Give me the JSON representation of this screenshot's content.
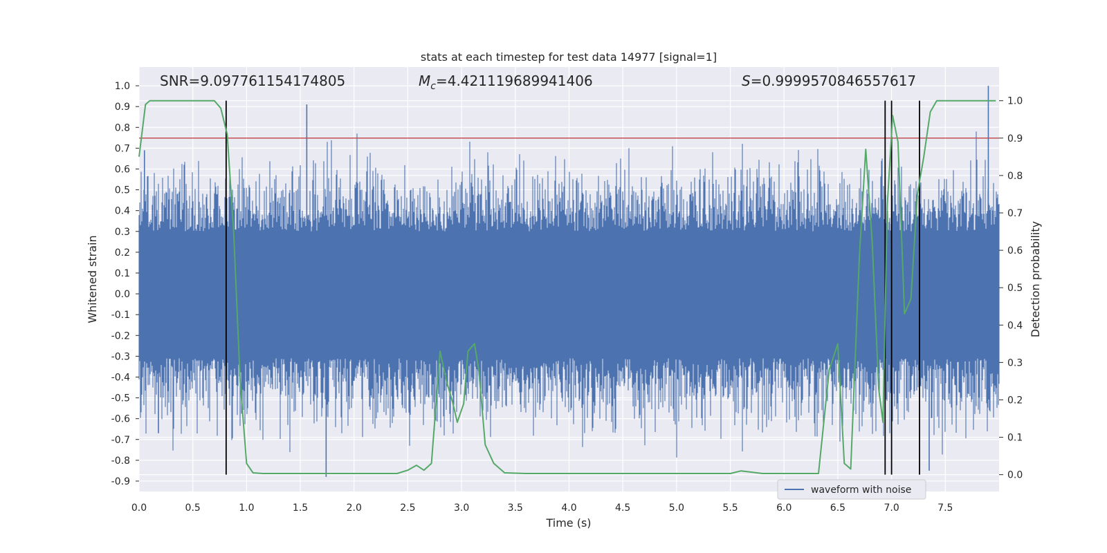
{
  "chart_data": {
    "type": "line",
    "title": "stats at each timestep for test data 14977 [signal=1]",
    "xlabel": "Time (s)",
    "ylabel": "Whitened strain",
    "y2label": "Detection probability",
    "xlim": [
      0.0,
      8.0
    ],
    "ylim": [
      -0.95,
      1.09
    ],
    "y2lim": [
      -0.045,
      1.09
    ],
    "x_ticks": [
      "0.0",
      "0.5",
      "1.0",
      "1.5",
      "2.0",
      "2.5",
      "3.0",
      "3.5",
      "4.0",
      "4.5",
      "5.0",
      "5.5",
      "6.0",
      "6.5",
      "7.0",
      "7.5"
    ],
    "y_ticks": [
      "1.0",
      "0.9",
      "0.8",
      "0.7",
      "0.6",
      "0.5",
      "0.4",
      "0.3",
      "0.2",
      "0.1",
      "0.0",
      "-0.1",
      "-0.2",
      "-0.3",
      "-0.4",
      "-0.5",
      "-0.6",
      "-0.7",
      "-0.8",
      "-0.9"
    ],
    "y2_ticks": [
      "1.0",
      "0.9",
      "0.8",
      "0.7",
      "0.6",
      "0.5",
      "0.4",
      "0.3",
      "0.2",
      "0.1",
      "0.0"
    ],
    "grid": true,
    "legend_position": "lower-right",
    "annotations": {
      "snr": "SNR=9.097761154174805",
      "mc_symbol": "M",
      "mc_sub": "c",
      "mc_value": "=4.421119689941406",
      "s_symbol": "S",
      "s_value": "=0.9999570846557617"
    },
    "series": [
      {
        "name": "waveform with noise",
        "kind": "noise-band",
        "axis": "left",
        "color": "#4c72b0",
        "core_range": [
          -0.31,
          0.3
        ],
        "typical_peak_range": [
          -0.55,
          0.55
        ],
        "notable_peaks": [
          {
            "x": 1.56,
            "y": 0.91
          },
          {
            "x": 7.9,
            "y": 1.0
          },
          {
            "x": 1.74,
            "y": -0.88
          },
          {
            "x": 7.35,
            "y": -0.85
          },
          {
            "x": 0.05,
            "y": 0.69
          },
          {
            "x": 0.18,
            "y": -0.67
          }
        ]
      },
      {
        "name": "",
        "kind": "probability",
        "axis": "right",
        "color": "#55a868",
        "x": [
          0.0,
          0.06,
          0.1,
          0.2,
          0.3,
          0.5,
          0.7,
          0.76,
          0.82,
          0.88,
          0.94,
          1.0,
          1.06,
          1.15,
          1.3,
          1.5,
          1.7,
          2.0,
          2.4,
          2.5,
          2.58,
          2.65,
          2.72,
          2.8,
          2.86,
          2.92,
          2.96,
          3.02,
          3.06,
          3.12,
          3.16,
          3.22,
          3.3,
          3.4,
          3.6,
          4.0,
          4.5,
          5.0,
          5.5,
          5.6,
          5.8,
          6.0,
          6.2,
          6.32,
          6.42,
          6.5,
          6.56,
          6.62,
          6.7,
          6.76,
          6.82,
          6.88,
          6.92,
          6.96,
          7.01,
          7.06,
          7.12,
          7.18,
          7.24,
          7.3,
          7.36,
          7.42,
          7.5,
          7.6,
          7.97
        ],
        "y": [
          0.85,
          0.99,
          1.0,
          1.0,
          1.0,
          1.0,
          1.0,
          0.98,
          0.91,
          0.65,
          0.25,
          0.03,
          0.005,
          0.003,
          0.003,
          0.003,
          0.003,
          0.003,
          0.003,
          0.012,
          0.025,
          0.012,
          0.03,
          0.33,
          0.25,
          0.19,
          0.14,
          0.19,
          0.33,
          0.35,
          0.28,
          0.08,
          0.03,
          0.005,
          0.003,
          0.003,
          0.003,
          0.003,
          0.003,
          0.01,
          0.003,
          0.003,
          0.003,
          0.003,
          0.28,
          0.35,
          0.03,
          0.015,
          0.58,
          0.87,
          0.62,
          0.23,
          0.14,
          0.72,
          0.96,
          0.89,
          0.43,
          0.47,
          0.75,
          0.85,
          0.97,
          1.0,
          1.0,
          1.0,
          1.0
        ]
      }
    ],
    "threshold_line": {
      "axis": "right",
      "value": 0.9,
      "color": "#c44e52"
    },
    "event_markers": {
      "color": "#000000",
      "x": [
        0.81,
        6.94,
        7.0,
        7.26
      ]
    }
  }
}
